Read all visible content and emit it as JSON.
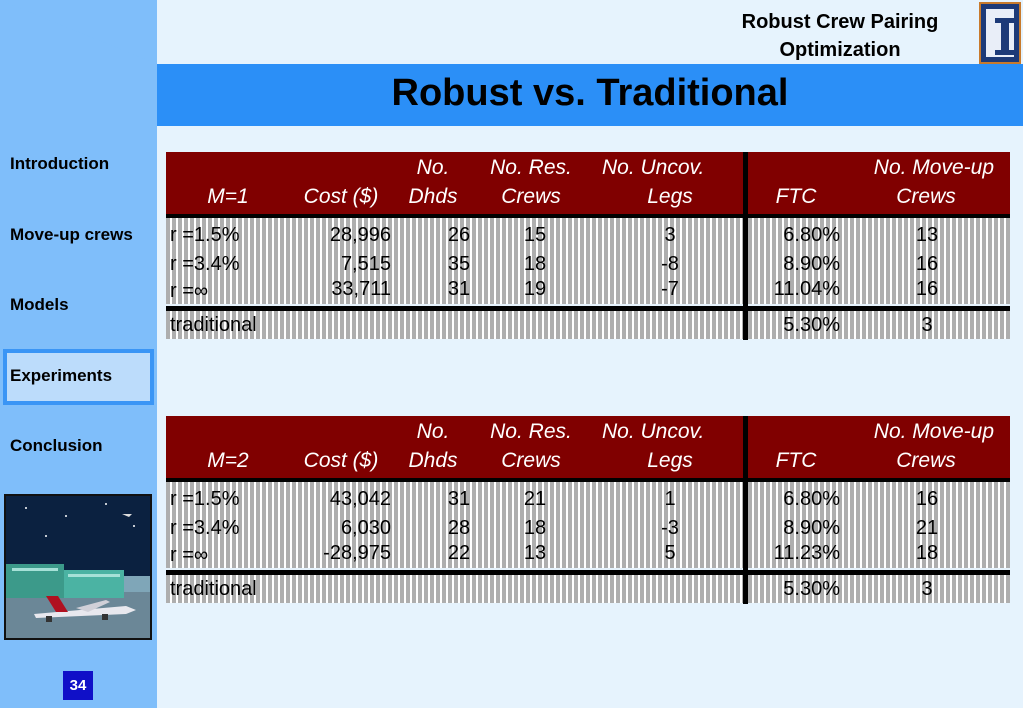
{
  "header": {
    "title": "Robust vs. Traditional",
    "deck_title_line1": "Robust Crew Pairing",
    "deck_title_line2": "Optimization",
    "logo_icon": "university-i-logo-icon"
  },
  "sidebar": {
    "items": [
      {
        "label": "Introduction"
      },
      {
        "label": "Move-up crews"
      },
      {
        "label": "Models"
      },
      {
        "label": "Experiments"
      },
      {
        "label": "Conclusion"
      }
    ],
    "active_index": 3
  },
  "page_number": "34",
  "tables": [
    {
      "headers": {
        "m": "M=1",
        "cost": "Cost ($)",
        "dhds_1": "No.",
        "dhds_2": "Dhds",
        "res_1": "No. Res.",
        "res_2": "Crews",
        "uncov_1": "No. Uncov.",
        "uncov_2": "Legs",
        "ftc": "FTC",
        "moveup_1": "No. Move-up",
        "moveup_2": "Crews"
      },
      "rows": [
        {
          "label": "r =1.5%",
          "cost": "28,996",
          "dhds": "26",
          "res": "15",
          "uncov": "3",
          "ftc": "6.80%",
          "moveup": "13"
        },
        {
          "label": "r =3.4%",
          "cost": "7,515",
          "dhds": "35",
          "res": "18",
          "uncov": "-8",
          "ftc": "8.90%",
          "moveup": "16"
        },
        {
          "label": "r =∞",
          "cost": "33,711",
          "dhds": "31",
          "res": "19",
          "uncov": "-7",
          "ftc": "11.04%",
          "moveup": "16"
        }
      ],
      "traditional": {
        "label": "traditional",
        "ftc": "5.30%",
        "moveup": "3"
      }
    },
    {
      "headers": {
        "m": "M=2",
        "cost": "Cost ($)",
        "dhds_1": "No.",
        "dhds_2": "Dhds",
        "res_1": "No. Res.",
        "res_2": "Crews",
        "uncov_1": "No. Uncov.",
        "uncov_2": "Legs",
        "ftc": "FTC",
        "moveup_1": "No. Move-up",
        "moveup_2": "Crews"
      },
      "rows": [
        {
          "label": "r =1.5%",
          "cost": "43,042",
          "dhds": "31",
          "res": "21",
          "uncov": "1",
          "ftc": "6.80%",
          "moveup": "16"
        },
        {
          "label": "r =3.4%",
          "cost": "6,030",
          "dhds": "28",
          "res": "18",
          "uncov": "-3",
          "ftc": "8.90%",
          "moveup": "21"
        },
        {
          "label": "r =∞",
          "cost": "-28,975",
          "dhds": "22",
          "res": "13",
          "uncov": "5",
          "ftc": "11.23%",
          "moveup": "18"
        }
      ],
      "traditional": {
        "label": "traditional",
        "ftc": "5.30%",
        "moveup": "3"
      }
    }
  ],
  "colors": {
    "sidebar": "#7fbefa",
    "header_band": "#2b8ff7",
    "table_header": "#800000",
    "page_number_bg": "#1010c8"
  }
}
